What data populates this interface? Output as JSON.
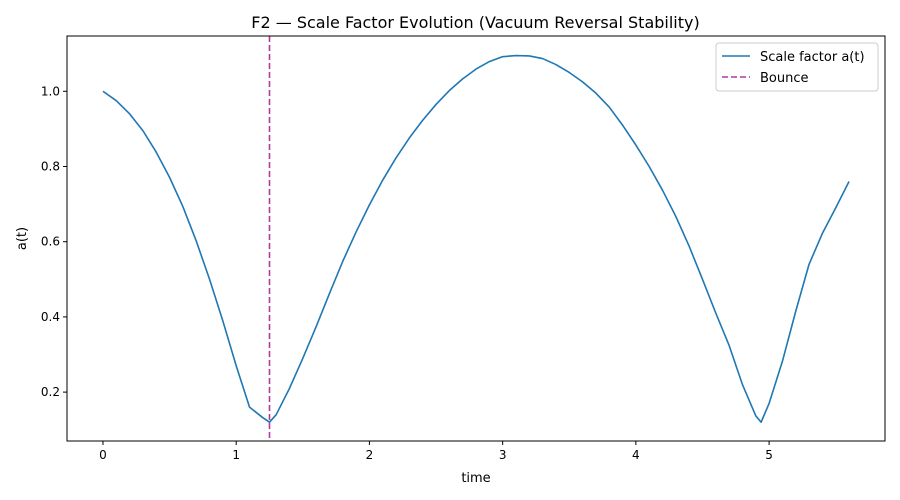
{
  "chart_data": {
    "type": "line",
    "title": "F2 — Scale Factor Evolution (Vacuum Reversal Stability)",
    "xlabel": "time",
    "ylabel": "a(t)",
    "xlim": [
      -0.27,
      5.87
    ],
    "ylim": [
      0.07,
      1.147
    ],
    "xticks": [
      0,
      1,
      2,
      3,
      4,
      5
    ],
    "xtick_labels": [
      "0",
      "1",
      "2",
      "3",
      "4",
      "5"
    ],
    "yticks": [
      0.2,
      0.4,
      0.6,
      0.8,
      1.0
    ],
    "ytick_labels": [
      "0.2",
      "0.4",
      "0.6",
      "0.8",
      "1.0"
    ],
    "grid": false,
    "legend_position": "upper-right",
    "series": [
      {
        "name": "Scale factor a(t)",
        "color": "#1f77b4",
        "style": "solid",
        "x": [
          0.0,
          0.1,
          0.2,
          0.3,
          0.4,
          0.5,
          0.6,
          0.7,
          0.8,
          0.9,
          1.0,
          1.1,
          1.2,
          1.25,
          1.3,
          1.4,
          1.5,
          1.6,
          1.7,
          1.8,
          1.9,
          2.0,
          2.1,
          2.2,
          2.3,
          2.4,
          2.5,
          2.6,
          2.7,
          2.8,
          2.9,
          3.0,
          3.1,
          3.2,
          3.3,
          3.4,
          3.5,
          3.6,
          3.7,
          3.8,
          3.9,
          4.0,
          4.1,
          4.2,
          4.3,
          4.4,
          4.5,
          4.6,
          4.7,
          4.8,
          4.9,
          4.94,
          5.0,
          5.1,
          5.2,
          5.3,
          5.4,
          5.5,
          5.6
        ],
        "y": [
          1.0,
          0.975,
          0.94,
          0.895,
          0.838,
          0.771,
          0.693,
          0.602,
          0.5,
          0.389,
          0.27,
          0.16,
          0.132,
          0.12,
          0.14,
          0.21,
          0.29,
          0.374,
          0.462,
          0.548,
          0.626,
          0.698,
          0.764,
          0.823,
          0.876,
          0.923,
          0.965,
          1.002,
          1.033,
          1.059,
          1.079,
          1.092,
          1.095,
          1.094,
          1.087,
          1.071,
          1.05,
          1.025,
          0.995,
          0.958,
          0.91,
          0.857,
          0.8,
          0.737,
          0.667,
          0.588,
          0.5,
          0.41,
          0.324,
          0.22,
          0.137,
          0.12,
          0.17,
          0.282,
          0.415,
          0.54,
          0.622,
          0.69,
          0.76
        ]
      },
      {
        "name": "Bounce",
        "color": "#b03aa0",
        "style": "dashed",
        "vertical_line_x": 1.25
      }
    ]
  }
}
